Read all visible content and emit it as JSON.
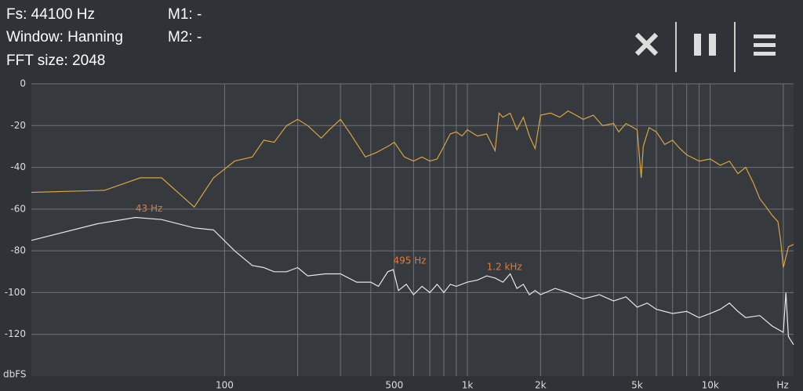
{
  "header": {
    "fs": "Fs: 44100 Hz",
    "window": "Window: Hanning",
    "fft": "FFT size: 2048",
    "m1": "M1: -",
    "m2": "M2: -"
  },
  "chart_data": {
    "type": "line",
    "xscale": "log",
    "grid": true,
    "xlabel": "Hz",
    "ylabel": "dbFS",
    "xlim": [
      16,
      22050
    ],
    "ylim": [
      -140,
      0
    ],
    "yticks": [
      0,
      -20,
      -40,
      -60,
      -80,
      -100,
      -120
    ],
    "xticks": [
      100,
      500,
      {
        "value": 1000,
        "label": "1k"
      },
      {
        "value": 2000,
        "label": "2k"
      },
      {
        "value": 5000,
        "label": "5k"
      },
      {
        "value": 10000,
        "label": "10k"
      }
    ],
    "xgrid": [
      100,
      200,
      300,
      400,
      500,
      600,
      700,
      800,
      900,
      1000,
      2000,
      3000,
      4000,
      5000,
      6000,
      7000,
      8000,
      9000,
      10000,
      20000
    ],
    "series": [
      {
        "color": "#d9a441",
        "x": [
          16,
          32,
          45,
          55,
          75,
          90,
          110,
          130,
          145,
          160,
          180,
          200,
          220,
          250,
          270,
          300,
          330,
          380,
          420,
          470,
          500,
          550,
          600,
          650,
          700,
          750,
          800,
          850,
          900,
          950,
          1000,
          1100,
          1200,
          1300,
          1350,
          1400,
          1500,
          1600,
          1700,
          1800,
          1900,
          2000,
          2200,
          2400,
          2600,
          2800,
          3000,
          3300,
          3600,
          4000,
          4200,
          4500,
          5000,
          5200,
          5300,
          5600,
          6000,
          6500,
          7000,
          7500,
          8000,
          9000,
          10000,
          11000,
          12000,
          13000,
          14000,
          15000,
          16000,
          17000,
          18000,
          19000,
          19500,
          20000,
          21000,
          22050
        ],
        "values": [
          -52,
          -51,
          -45,
          -45,
          -59,
          -45,
          -37,
          -35,
          -27,
          -28,
          -20,
          -17,
          -20,
          -26,
          -22,
          -17,
          -24,
          -35,
          -33,
          -30,
          -28,
          -35,
          -37,
          -35,
          -37,
          -36,
          -30,
          -24,
          -23,
          -25,
          -22,
          -25,
          -24,
          -32,
          -14,
          -16,
          -14,
          -22,
          -16,
          -25,
          -31,
          -15,
          -14,
          -16,
          -13,
          -15,
          -17,
          -15,
          -20,
          -19,
          -23,
          -19,
          -22,
          -45,
          -30,
          -21,
          -23,
          -29,
          -27,
          -31,
          -34,
          -37,
          -36,
          -39,
          -37,
          -43,
          -40,
          -47,
          -55,
          -59,
          -63,
          -66,
          -75,
          -88,
          -78,
          -77
        ]
      },
      {
        "color": "#e6e6e6",
        "x": [
          16,
          30,
          43,
          55,
          75,
          90,
          110,
          130,
          145,
          160,
          180,
          200,
          220,
          260,
          300,
          350,
          400,
          430,
          470,
          495,
          520,
          560,
          600,
          650,
          700,
          750,
          800,
          850,
          900,
          1000,
          1100,
          1200,
          1300,
          1400,
          1500,
          1600,
          1700,
          1800,
          1900,
          2000,
          2300,
          2600,
          3000,
          3500,
          4000,
          4500,
          5000,
          5500,
          6000,
          7000,
          8000,
          9000,
          10000,
          11000,
          12000,
          13000,
          14000,
          16000,
          18000,
          20000,
          20500,
          21000,
          22050
        ],
        "values": [
          -75,
          -67,
          -64,
          -65,
          -69,
          -70,
          -80,
          -87,
          -88,
          -90,
          -90,
          -88,
          -92,
          -91,
          -91,
          -95,
          -95,
          -97,
          -90,
          -89,
          -99,
          -96,
          -101,
          -97,
          -100,
          -96,
          -100,
          -96,
          -97,
          -95,
          -94,
          -92,
          -93,
          -95,
          -91,
          -98,
          -96,
          -101,
          -99,
          -101,
          -98,
          -100,
          -103,
          -101,
          -104,
          -102,
          -107,
          -105,
          -108,
          -110,
          -109,
          -112,
          -110,
          -108,
          -105,
          -109,
          -112,
          -111,
          -116,
          -119,
          -100,
          -121,
          -125
        ]
      }
    ],
    "annotations": [
      {
        "text": "43 Hz",
        "x": 43,
        "y": -64
      },
      {
        "text": "495 Hz",
        "x": 495,
        "y": -89
      },
      {
        "text": "1.2  kHz",
        "x": 1200,
        "y": -92
      }
    ]
  }
}
